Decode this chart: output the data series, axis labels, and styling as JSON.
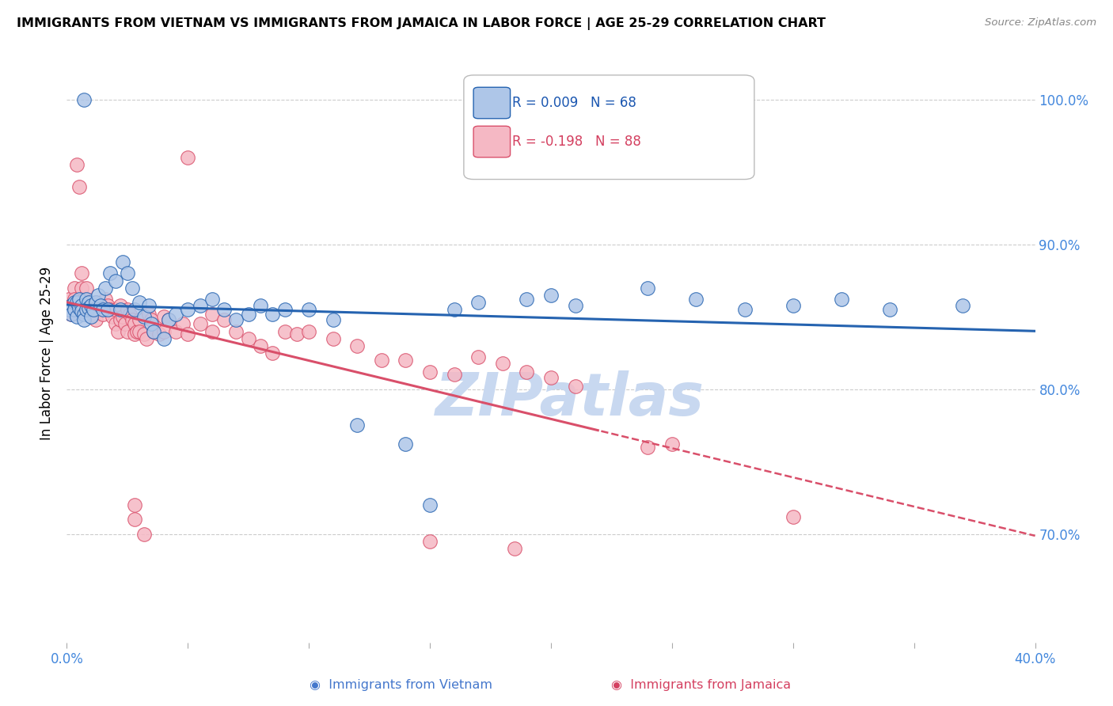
{
  "title": "IMMIGRANTS FROM VIETNAM VS IMMIGRANTS FROM JAMAICA IN LABOR FORCE | AGE 25-29 CORRELATION CHART",
  "source": "Source: ZipAtlas.com",
  "ylabel": "In Labor Force | Age 25-29",
  "x_min": 0.0,
  "x_max": 0.4,
  "y_min": 0.625,
  "y_max": 1.025,
  "y_ticks": [
    0.7,
    0.8,
    0.9,
    1.0
  ],
  "y_tick_labels": [
    "70.0%",
    "80.0%",
    "90.0%",
    "100.0%"
  ],
  "x_ticks": [
    0.0,
    0.05,
    0.1,
    0.15,
    0.2,
    0.25,
    0.3,
    0.35,
    0.4
  ],
  "x_tick_labels": [
    "0.0%",
    "",
    "",
    "",
    "",
    "",
    "",
    "",
    "40.0%"
  ],
  "vietnam_color": "#aec6e8",
  "jamaica_color": "#f5b8c4",
  "vietnam_R": 0.009,
  "vietnam_N": 68,
  "jamaica_R": -0.198,
  "jamaica_N": 88,
  "trend_vietnam_color": "#2563b0",
  "trend_jamaica_color": "#d94f6a",
  "background_color": "#ffffff",
  "grid_color": "#cccccc",
  "watermark_text": "ZIPatlas",
  "watermark_color": "#c8d8f0",
  "legend_R_color": "#1a56b0",
  "legend_J_color": "#d44060",
  "vietnam_scatter": [
    [
      0.001,
      0.855
    ],
    [
      0.002,
      0.858
    ],
    [
      0.002,
      0.852
    ],
    [
      0.003,
      0.86
    ],
    [
      0.003,
      0.855
    ],
    [
      0.004,
      0.85
    ],
    [
      0.004,
      0.86
    ],
    [
      0.005,
      0.856
    ],
    [
      0.005,
      0.862
    ],
    [
      0.006,
      0.858
    ],
    [
      0.006,
      0.854
    ],
    [
      0.007,
      0.852
    ],
    [
      0.007,
      0.848
    ],
    [
      0.008,
      0.855
    ],
    [
      0.008,
      0.862
    ],
    [
      0.009,
      0.86
    ],
    [
      0.009,
      0.856
    ],
    [
      0.01,
      0.858
    ],
    [
      0.01,
      0.85
    ],
    [
      0.011,
      0.855
    ],
    [
      0.012,
      0.86
    ],
    [
      0.013,
      0.865
    ],
    [
      0.014,
      0.858
    ],
    [
      0.015,
      0.855
    ],
    [
      0.016,
      0.87
    ],
    [
      0.017,
      0.855
    ],
    [
      0.018,
      0.88
    ],
    [
      0.02,
      0.875
    ],
    [
      0.022,
      0.855
    ],
    [
      0.023,
      0.888
    ],
    [
      0.025,
      0.88
    ],
    [
      0.027,
      0.87
    ],
    [
      0.028,
      0.855
    ],
    [
      0.03,
      0.86
    ],
    [
      0.032,
      0.85
    ],
    [
      0.034,
      0.858
    ],
    [
      0.035,
      0.845
    ],
    [
      0.036,
      0.84
    ],
    [
      0.04,
      0.835
    ],
    [
      0.042,
      0.848
    ],
    [
      0.045,
      0.852
    ],
    [
      0.05,
      0.855
    ],
    [
      0.055,
      0.858
    ],
    [
      0.06,
      0.862
    ],
    [
      0.065,
      0.855
    ],
    [
      0.07,
      0.848
    ],
    [
      0.075,
      0.852
    ],
    [
      0.08,
      0.858
    ],
    [
      0.085,
      0.852
    ],
    [
      0.09,
      0.855
    ],
    [
      0.1,
      0.855
    ],
    [
      0.11,
      0.848
    ],
    [
      0.12,
      0.775
    ],
    [
      0.14,
      0.762
    ],
    [
      0.15,
      0.72
    ],
    [
      0.16,
      0.855
    ],
    [
      0.17,
      0.86
    ],
    [
      0.19,
      0.862
    ],
    [
      0.2,
      0.865
    ],
    [
      0.21,
      0.858
    ],
    [
      0.24,
      0.87
    ],
    [
      0.26,
      0.862
    ],
    [
      0.28,
      0.855
    ],
    [
      0.3,
      0.858
    ],
    [
      0.32,
      0.862
    ],
    [
      0.34,
      0.855
    ],
    [
      0.37,
      0.858
    ],
    [
      0.007,
      1.0
    ]
  ],
  "jamaica_scatter": [
    [
      0.001,
      0.862
    ],
    [
      0.002,
      0.858
    ],
    [
      0.002,
      0.852
    ],
    [
      0.003,
      0.87
    ],
    [
      0.003,
      0.862
    ],
    [
      0.004,
      0.858
    ],
    [
      0.004,
      0.955
    ],
    [
      0.005,
      0.94
    ],
    [
      0.005,
      0.855
    ],
    [
      0.006,
      0.88
    ],
    [
      0.006,
      0.87
    ],
    [
      0.007,
      0.862
    ],
    [
      0.007,
      0.858
    ],
    [
      0.008,
      0.855
    ],
    [
      0.008,
      0.87
    ],
    [
      0.009,
      0.86
    ],
    [
      0.009,
      0.858
    ],
    [
      0.01,
      0.855
    ],
    [
      0.01,
      0.858
    ],
    [
      0.011,
      0.852
    ],
    [
      0.012,
      0.848
    ],
    [
      0.012,
      0.86
    ],
    [
      0.013,
      0.855
    ],
    [
      0.014,
      0.858
    ],
    [
      0.015,
      0.852
    ],
    [
      0.016,
      0.862
    ],
    [
      0.017,
      0.858
    ],
    [
      0.018,
      0.855
    ],
    [
      0.019,
      0.85
    ],
    [
      0.02,
      0.855
    ],
    [
      0.02,
      0.845
    ],
    [
      0.021,
      0.84
    ],
    [
      0.022,
      0.848
    ],
    [
      0.022,
      0.858
    ],
    [
      0.023,
      0.85
    ],
    [
      0.024,
      0.845
    ],
    [
      0.025,
      0.84
    ],
    [
      0.025,
      0.855
    ],
    [
      0.026,
      0.852
    ],
    [
      0.027,
      0.848
    ],
    [
      0.028,
      0.845
    ],
    [
      0.028,
      0.838
    ],
    [
      0.029,
      0.84
    ],
    [
      0.03,
      0.848
    ],
    [
      0.03,
      0.84
    ],
    [
      0.032,
      0.838
    ],
    [
      0.033,
      0.835
    ],
    [
      0.034,
      0.852
    ],
    [
      0.035,
      0.848
    ],
    [
      0.036,
      0.84
    ],
    [
      0.038,
      0.838
    ],
    [
      0.04,
      0.85
    ],
    [
      0.04,
      0.84
    ],
    [
      0.042,
      0.848
    ],
    [
      0.045,
      0.84
    ],
    [
      0.048,
      0.845
    ],
    [
      0.05,
      0.838
    ],
    [
      0.055,
      0.845
    ],
    [
      0.06,
      0.852
    ],
    [
      0.06,
      0.84
    ],
    [
      0.065,
      0.848
    ],
    [
      0.07,
      0.84
    ],
    [
      0.075,
      0.835
    ],
    [
      0.08,
      0.83
    ],
    [
      0.085,
      0.825
    ],
    [
      0.09,
      0.84
    ],
    [
      0.095,
      0.838
    ],
    [
      0.1,
      0.84
    ],
    [
      0.11,
      0.835
    ],
    [
      0.12,
      0.83
    ],
    [
      0.13,
      0.82
    ],
    [
      0.14,
      0.82
    ],
    [
      0.15,
      0.812
    ],
    [
      0.16,
      0.81
    ],
    [
      0.17,
      0.822
    ],
    [
      0.18,
      0.818
    ],
    [
      0.19,
      0.812
    ],
    [
      0.2,
      0.808
    ],
    [
      0.21,
      0.802
    ],
    [
      0.028,
      0.71
    ],
    [
      0.032,
      0.7
    ],
    [
      0.028,
      0.72
    ],
    [
      0.15,
      0.695
    ],
    [
      0.3,
      0.712
    ],
    [
      0.185,
      0.69
    ],
    [
      0.24,
      0.76
    ],
    [
      0.25,
      0.762
    ],
    [
      0.05,
      0.96
    ]
  ]
}
